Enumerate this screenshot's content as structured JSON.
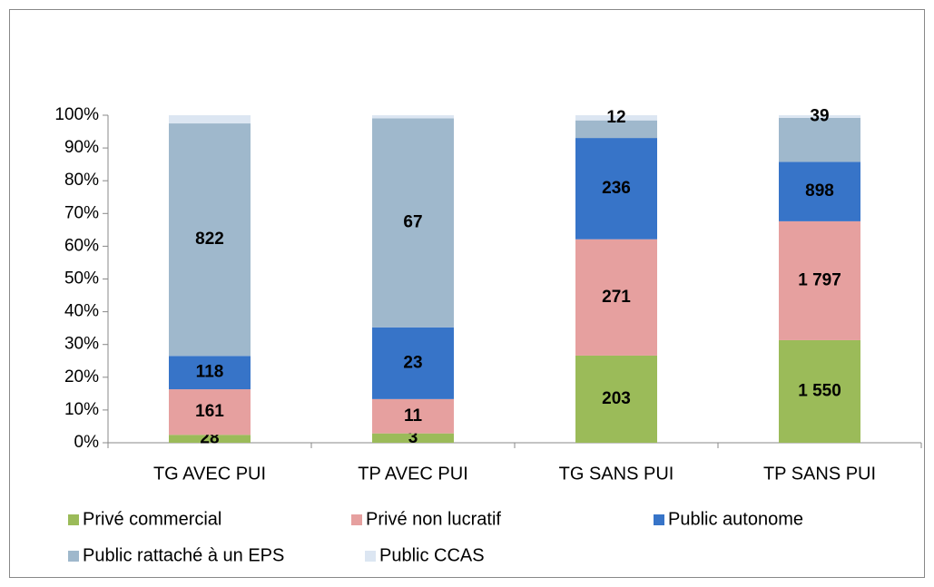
{
  "chart_data": {
    "type": "bar",
    "stacking": "percent",
    "categories": [
      "TG AVEC PUI",
      "TP AVEC PUI",
      "TG SANS PUI",
      "TP SANS PUI"
    ],
    "series": [
      {
        "name": "Privé commercial",
        "color": "#9bbb59",
        "values": [
          28,
          3,
          203,
          1550
        ],
        "value_labels": [
          "28",
          "3",
          "203",
          "1 550"
        ]
      },
      {
        "name": "Privé non lucratif",
        "color": "#e6a09f",
        "values": [
          161,
          11,
          271,
          1797
        ],
        "value_labels": [
          "161",
          "11",
          "271",
          "1 797"
        ]
      },
      {
        "name": "Public autonome",
        "color": "#3774c8",
        "values": [
          118,
          23,
          236,
          898
        ],
        "value_labels": [
          "118",
          "23",
          "236",
          "898"
        ]
      },
      {
        "name": "Public rattaché à un EPS",
        "color": "#9fb8cc",
        "values": [
          822,
          67,
          41,
          666
        ],
        "value_labels": [
          "822",
          "67",
          null,
          null
        ]
      },
      {
        "name": "Public CCAS",
        "color": "#dce6f2",
        "values": [
          29,
          1,
          12,
          39
        ],
        "value_labels": [
          null,
          null,
          "12",
          "39"
        ]
      }
    ],
    "ylim": [
      0,
      100
    ],
    "yticks": [
      {
        "value": 0,
        "label": "0%"
      },
      {
        "value": 10,
        "label": "10%"
      },
      {
        "value": 20,
        "label": "20%"
      },
      {
        "value": 30,
        "label": "30%"
      },
      {
        "value": 40,
        "label": "40%"
      },
      {
        "value": 50,
        "label": "50%"
      },
      {
        "value": 60,
        "label": "60%"
      },
      {
        "value": 70,
        "label": "70%"
      },
      {
        "value": 80,
        "label": "80%"
      },
      {
        "value": 90,
        "label": "90%"
      },
      {
        "value": 100,
        "label": "100%"
      }
    ],
    "grid": false,
    "legend": "bottom"
  }
}
